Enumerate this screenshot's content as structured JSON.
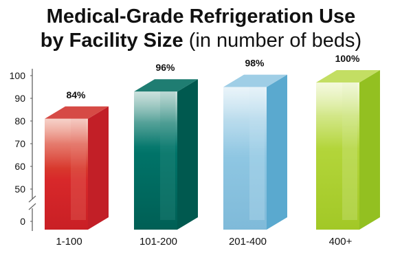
{
  "chart_data": {
    "type": "bar",
    "title": "Medical-Grade Refrigeration Use",
    "subtitle_bold": "by Facility Size",
    "subtitle_light": "(in number of beds)",
    "categories": [
      "1-100",
      "101-200",
      "201-400",
      "400+"
    ],
    "values": [
      84,
      96,
      98,
      100
    ],
    "value_labels": [
      "84%",
      "96%",
      "98%",
      "100%"
    ],
    "y_ticks": [
      "100",
      "90",
      "80",
      "70",
      "60",
      "50",
      "0"
    ],
    "ylim": [
      0,
      100
    ],
    "axis_break": "between 0 and 50",
    "grid": false,
    "legend": "none",
    "colors": [
      "#d62a2b",
      "#00695f",
      "#6fb6d8",
      "#a6cf2e"
    ]
  }
}
